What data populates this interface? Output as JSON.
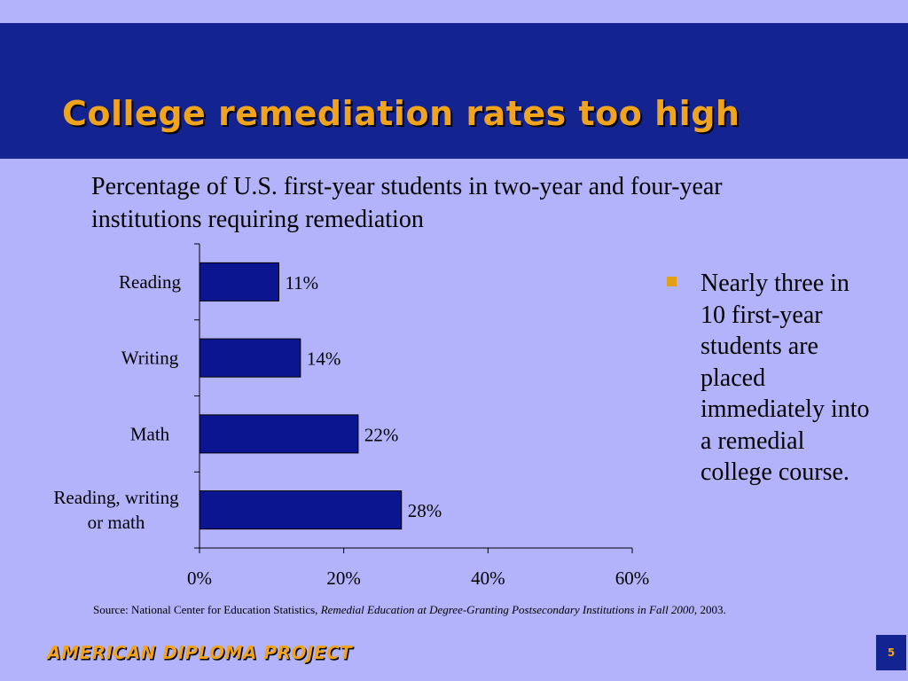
{
  "slide": {
    "title": "College remediation rates too high",
    "subtitle": "Percentage of U.S. first-year students in two-year and four-year institutions requiring remediation",
    "bullet": "Nearly three in 10 first-year students are placed immediately into a remedial college course.",
    "source_prefix": "Source: National Center for Education Statistics, ",
    "source_title": "Remedial Education at Degree-Granting Postsecondary Institutions in Fall 2000,",
    "source_suffix": " 2003.",
    "footer": "AMERICAN DIPLOMA PROJECT",
    "page_number": "5"
  },
  "colors": {
    "background": "#b3b3fb",
    "title_band": "#13238f",
    "title_text": "#f0a31c",
    "bar_fill": "#0c1590",
    "bullet_marker": "#e3a015"
  },
  "chart_data": {
    "type": "bar",
    "orientation": "horizontal",
    "categories": [
      "Reading",
      "Writing",
      "Math",
      "Reading, writing\nor math"
    ],
    "values": [
      11,
      14,
      22,
      28
    ],
    "data_labels": [
      "11%",
      "14%",
      "22%",
      "28%"
    ],
    "xlim": [
      0,
      60
    ],
    "xticks": [
      0,
      20,
      40,
      60
    ],
    "xtick_labels": [
      "0%",
      "20%",
      "40%",
      "60%"
    ],
    "grid": false
  }
}
